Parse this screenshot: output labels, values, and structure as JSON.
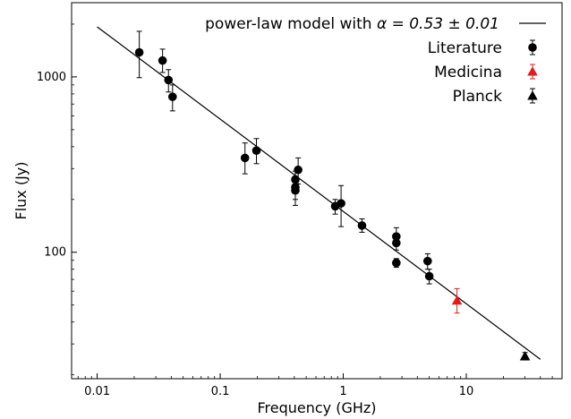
{
  "chart_data": {
    "type": "scatter",
    "xscale": "log",
    "yscale": "log",
    "xlabel": "Frequency (GHz)",
    "ylabel": "Flux (Jy)",
    "xlim": [
      0.0062,
      60
    ],
    "ylim": [
      19,
      2650
    ],
    "x_ticks": [
      {
        "value": 0.01,
        "label": "0.01"
      },
      {
        "value": 0.1,
        "label": "0.1"
      },
      {
        "value": 1,
        "label": "1"
      },
      {
        "value": 10,
        "label": "10"
      }
    ],
    "y_ticks": [
      {
        "value": 100,
        "label": "100"
      },
      {
        "value": 1000,
        "label": "1000"
      }
    ],
    "legend_position": "top-right",
    "model": {
      "label_prefix": "power-law model  with ",
      "label_math": "α = 0.53 ± 0.01",
      "x": [
        0.01,
        40
      ],
      "y": [
        1930,
        24.5
      ],
      "color": "#000000"
    },
    "series": [
      {
        "name": "Literature",
        "marker": "circle",
        "color": "#000000",
        "points": [
          {
            "x": 0.022,
            "y": 1380,
            "ylo": 990,
            "yhi": 1820
          },
          {
            "x": 0.034,
            "y": 1240,
            "ylo": 1060,
            "yhi": 1440
          },
          {
            "x": 0.038,
            "y": 960,
            "ylo": 820,
            "yhi": 1100
          },
          {
            "x": 0.041,
            "y": 770,
            "ylo": 640,
            "yhi": 900
          },
          {
            "x": 0.159,
            "y": 345,
            "ylo": 280,
            "yhi": 420
          },
          {
            "x": 0.197,
            "y": 380,
            "ylo": 320,
            "yhi": 445
          },
          {
            "x": 0.408,
            "y": 260,
            "ylo": 230,
            "yhi": 290
          },
          {
            "x": 0.408,
            "y": 235,
            "ylo": 200,
            "yhi": 270
          },
          {
            "x": 0.408,
            "y": 225,
            "ylo": 185,
            "yhi": 265
          },
          {
            "x": 0.43,
            "y": 295,
            "ylo": 245,
            "yhi": 345
          },
          {
            "x": 0.86,
            "y": 183,
            "ylo": 165,
            "yhi": 200
          },
          {
            "x": 0.96,
            "y": 190,
            "ylo": 140,
            "yhi": 240
          },
          {
            "x": 1.42,
            "y": 142,
            "ylo": 130,
            "yhi": 155
          },
          {
            "x": 2.7,
            "y": 123,
            "ylo": 110,
            "yhi": 138
          },
          {
            "x": 2.7,
            "y": 113,
            "ylo": 103,
            "yhi": 123
          },
          {
            "x": 2.7,
            "y": 87,
            "ylo": 82,
            "yhi": 92
          },
          {
            "x": 4.85,
            "y": 89,
            "ylo": 80,
            "yhi": 98
          },
          {
            "x": 5.0,
            "y": 73,
            "ylo": 66,
            "yhi": 80
          }
        ]
      },
      {
        "name": "Medicina",
        "marker": "triangle",
        "color": "#e41a1c",
        "points": [
          {
            "x": 8.4,
            "y": 53,
            "ylo": 45,
            "yhi": 62
          }
        ]
      },
      {
        "name": "Planck",
        "marker": "triangle",
        "color": "#000000",
        "points": [
          {
            "x": 30,
            "y": 25.5,
            "ylo": 24.3,
            "yhi": 26.8
          }
        ]
      }
    ]
  }
}
